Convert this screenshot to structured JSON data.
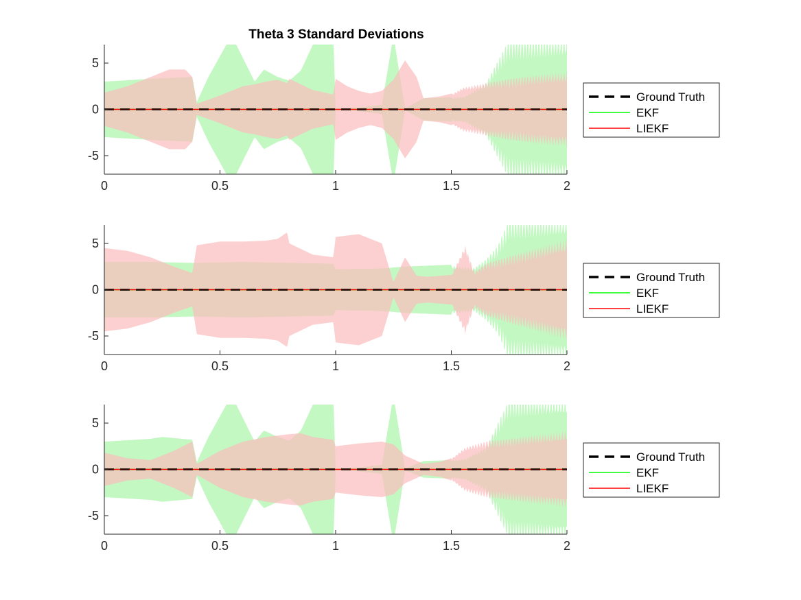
{
  "figure_title": "Theta 3 Standard Deviations",
  "colors": {
    "ground_truth": "#000000",
    "ekf_line": "#00ff00",
    "liekf_line": "#ff0000",
    "ekf_fill": "#b8f7b8",
    "liekf_fill": "#fbbcbc",
    "overlap_fill": "#d4c8a2",
    "axis": "#262626"
  },
  "chart_data": [
    {
      "type": "area",
      "title": "Theta 3 Standard Deviations",
      "xlabel": "",
      "ylabel": "",
      "xlim": [
        0,
        2
      ],
      "ylim": [
        -7,
        7
      ],
      "xticks": [
        0,
        0.5,
        1,
        1.5,
        2
      ],
      "xtick_labels": [
        "0",
        "0.5",
        "1",
        "1.5",
        "2"
      ],
      "yticks": [
        5,
        0,
        -5
      ],
      "ytick_labels": [
        "5",
        "0",
        "-5"
      ],
      "grid": false,
      "legend_position": "outside-right",
      "legend": [
        "Ground Truth",
        "EKF",
        "LIEKF"
      ],
      "series": [
        {
          "name": "Ground Truth",
          "style": "dashed",
          "x": [
            0,
            2
          ],
          "y": [
            0,
            0
          ]
        },
        {
          "name": "EKF",
          "style": "solid",
          "x": [
            0,
            2
          ],
          "y": [
            0,
            0
          ],
          "band_x": [
            0,
            0.2,
            0.38,
            0.4,
            0.45,
            0.55,
            0.65,
            0.69,
            0.75,
            0.8,
            0.85,
            0.92,
            0.99,
            1.0,
            1.1,
            1.2,
            1.25,
            1.3,
            1.38,
            1.5,
            1.56,
            1.65,
            1.75,
            1.85,
            1.95,
            2.0
          ],
          "band_halfwidth": [
            3.0,
            3.3,
            3.5,
            0.8,
            3.5,
            8.0,
            3.0,
            4.3,
            3.5,
            3.1,
            4.2,
            8.0,
            8.0,
            0.0,
            0.2,
            0.5,
            8.0,
            0.1,
            1.2,
            1.3,
            1.5,
            3.0,
            8.0,
            8.0,
            8.0,
            8.0
          ]
        },
        {
          "name": "LIEKF",
          "style": "solid",
          "x": [
            0,
            2
          ],
          "y": [
            0,
            0
          ],
          "band_x": [
            0,
            0.1,
            0.2,
            0.28,
            0.35,
            0.38,
            0.4,
            0.5,
            0.6,
            0.65,
            0.7,
            0.75,
            0.79,
            0.8,
            0.85,
            0.9,
            0.99,
            1.0,
            1.05,
            1.1,
            1.15,
            1.2,
            1.25,
            1.3,
            1.35,
            1.38,
            1.45,
            1.5,
            1.55,
            1.65,
            1.75,
            1.85,
            1.95,
            2.0
          ],
          "band_halfwidth": [
            1.8,
            2.5,
            3.5,
            4.3,
            4.3,
            3.5,
            0.6,
            1.5,
            2.5,
            2.7,
            3.0,
            3.2,
            2.8,
            3.3,
            2.7,
            2.1,
            1.6,
            3.3,
            2.5,
            2.0,
            1.7,
            2.0,
            3.2,
            5.3,
            3.5,
            1.2,
            1.4,
            1.7,
            2.5,
            3.0,
            3.5,
            3.8,
            4.0,
            4.0
          ]
        }
      ]
    },
    {
      "type": "area",
      "title": "",
      "xlabel": "",
      "ylabel": "",
      "xlim": [
        0,
        2
      ],
      "ylim": [
        -7,
        7
      ],
      "xticks": [
        0,
        0.5,
        1,
        1.5,
        2
      ],
      "xtick_labels": [
        "0",
        "0.5",
        "1",
        "1.5",
        "2"
      ],
      "yticks": [
        5,
        0,
        -5
      ],
      "ytick_labels": [
        "5",
        "0",
        "-5"
      ],
      "grid": false,
      "legend_position": "outside-right",
      "legend": [
        "Ground Truth",
        "EKF",
        "LIEKF"
      ],
      "series": [
        {
          "name": "Ground Truth",
          "style": "dashed",
          "x": [
            0,
            2
          ],
          "y": [
            0,
            0
          ]
        },
        {
          "name": "EKF",
          "style": "solid",
          "x": [
            0,
            2
          ],
          "y": [
            0,
            0
          ],
          "band_x": [
            0,
            0.2,
            0.38,
            0.4,
            0.6,
            0.8,
            0.99,
            1.0,
            1.2,
            1.25,
            1.3,
            1.5,
            1.52,
            1.6,
            1.65,
            1.7,
            1.75,
            1.85,
            1.95,
            2.0
          ],
          "band_halfwidth": [
            3.0,
            3.0,
            2.9,
            2.9,
            3.0,
            2.9,
            2.8,
            2.2,
            2.3,
            2.4,
            2.5,
            2.7,
            2.7,
            2.5,
            3.5,
            5.0,
            8.0,
            8.0,
            8.0,
            8.0
          ]
        },
        {
          "name": "LIEKF",
          "style": "solid",
          "x": [
            0,
            2
          ],
          "y": [
            0,
            0
          ],
          "band_x": [
            0,
            0.1,
            0.2,
            0.3,
            0.38,
            0.4,
            0.5,
            0.6,
            0.7,
            0.75,
            0.79,
            0.8,
            0.9,
            0.99,
            1.0,
            1.1,
            1.2,
            1.25,
            1.3,
            1.35,
            1.4,
            1.5,
            1.56,
            1.6,
            1.65,
            1.75,
            1.85,
            1.95,
            2.0
          ],
          "band_halfwidth": [
            4.5,
            4.2,
            3.5,
            2.5,
            1.8,
            4.8,
            5.2,
            5.2,
            5.3,
            5.5,
            6.2,
            5.0,
            3.8,
            3.5,
            5.7,
            6.0,
            5.0,
            0.8,
            3.5,
            1.5,
            1.4,
            1.6,
            5.0,
            2.0,
            3.0,
            3.8,
            4.5,
            5.2,
            5.5
          ]
        }
      ]
    },
    {
      "type": "area",
      "title": "",
      "xlabel": "",
      "ylabel": "",
      "xlim": [
        0,
        2
      ],
      "ylim": [
        -7,
        7
      ],
      "xticks": [
        0,
        0.5,
        1,
        1.5,
        2
      ],
      "xtick_labels": [
        "0",
        "0.5",
        "1",
        "1.5",
        "2"
      ],
      "yticks": [
        5,
        0,
        -5
      ],
      "ytick_labels": [
        "5",
        "0",
        "-5"
      ],
      "grid": false,
      "legend_position": "outside-right",
      "legend": [
        "Ground Truth",
        "EKF",
        "LIEKF"
      ],
      "series": [
        {
          "name": "Ground Truth",
          "style": "dashed",
          "x": [
            0,
            2
          ],
          "y": [
            0,
            0
          ]
        },
        {
          "name": "EKF",
          "style": "solid",
          "x": [
            0,
            2
          ],
          "y": [
            0,
            0
          ],
          "band_x": [
            0,
            0.2,
            0.25,
            0.38,
            0.4,
            0.45,
            0.55,
            0.65,
            0.69,
            0.75,
            0.8,
            0.85,
            0.92,
            0.99,
            1.0,
            1.1,
            1.2,
            1.25,
            1.3,
            1.38,
            1.5,
            1.56,
            1.65,
            1.75,
            1.85,
            1.95,
            2.0
          ],
          "band_halfwidth": [
            3.0,
            3.3,
            3.5,
            3.2,
            0.8,
            3.5,
            8.0,
            3.0,
            4.2,
            3.5,
            3.1,
            4.2,
            8.0,
            8.0,
            0.0,
            0.2,
            0.5,
            8.0,
            0.1,
            0.9,
            1.0,
            1.2,
            2.5,
            8.0,
            8.0,
            8.0,
            8.0
          ]
        },
        {
          "name": "LIEKF",
          "style": "solid",
          "x": [
            0,
            2
          ],
          "y": [
            0,
            0
          ],
          "band_x": [
            0,
            0.1,
            0.2,
            0.3,
            0.38,
            0.4,
            0.5,
            0.6,
            0.7,
            0.8,
            0.85,
            0.9,
            0.99,
            1.0,
            1.1,
            1.2,
            1.25,
            1.3,
            1.38,
            1.45,
            1.5,
            1.56,
            1.65,
            1.75,
            1.85,
            1.95,
            2.0
          ],
          "band_halfwidth": [
            1.8,
            1.2,
            1.0,
            2.0,
            3.0,
            0.6,
            2.0,
            3.0,
            3.5,
            3.8,
            3.9,
            3.5,
            3.2,
            2.5,
            2.8,
            3.0,
            2.7,
            1.5,
            0.6,
            0.8,
            1.2,
            2.5,
            3.2,
            3.5,
            3.8,
            4.0,
            4.2
          ]
        }
      ]
    }
  ]
}
